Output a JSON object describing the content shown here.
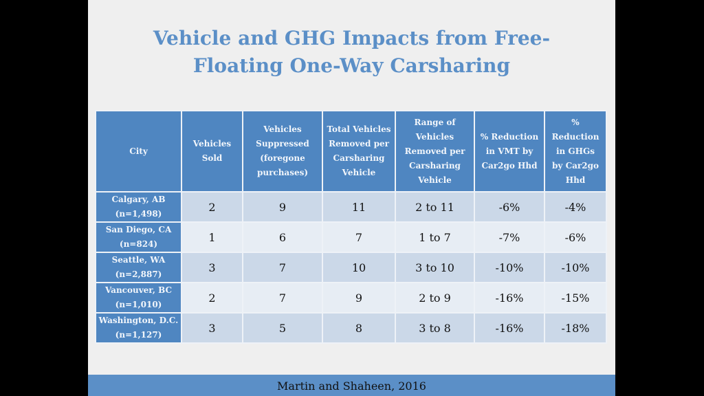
{
  "title": {
    "line1": "Vehicle and GHG Impacts from Free-",
    "line2": "Floating One-Way Carsharing"
  },
  "table": {
    "headers": [
      [
        "City"
      ],
      [
        "Vehicles",
        "Sold"
      ],
      [
        "Vehicles",
        "Suppressed",
        "(foregone",
        "purchases)"
      ],
      [
        "Total Vehicles",
        "Removed per",
        "Carsharing",
        "Vehicle"
      ],
      [
        "Range of",
        "Vehicles",
        "Removed per",
        "Carsharing",
        "Vehicle"
      ],
      [
        "% Reduction",
        "in VMT by",
        "Car2go Hhd"
      ],
      [
        "%",
        "Reduction",
        "in GHGs",
        "by Car2go",
        "Hhd"
      ]
    ],
    "rows": [
      {
        "city": "Calgary, AB",
        "n": "(n=1,498)",
        "sold": "2",
        "suppressed": "9",
        "total": "11",
        "range": "2 to 11",
        "vmt": "-6%",
        "ghg": "-4%"
      },
      {
        "city": "San Diego, CA",
        "n": "(n=824)",
        "sold": "1",
        "suppressed": "6",
        "total": "7",
        "range": "1 to 7",
        "vmt": "-7%",
        "ghg": "-6%"
      },
      {
        "city": "Seattle, WA",
        "n": "(n=2,887)",
        "sold": "3",
        "suppressed": "7",
        "total": "10",
        "range": "3 to 10",
        "vmt": "-10%",
        "ghg": "-10%"
      },
      {
        "city": "Vancouver, BC",
        "n": "(n=1,010)",
        "sold": "2",
        "suppressed": "7",
        "total": "9",
        "range": "2 to 9",
        "vmt": "-16%",
        "ghg": "-15%"
      },
      {
        "city": "Washington, D.C.",
        "n": "(n=1,127)",
        "sold": "3",
        "suppressed": "5",
        "total": "8",
        "range": "3 to 8",
        "vmt": "-16%",
        "ghg": "-18%"
      }
    ]
  },
  "footer": {
    "citation": "Martin and Shaheen, 2016"
  }
}
